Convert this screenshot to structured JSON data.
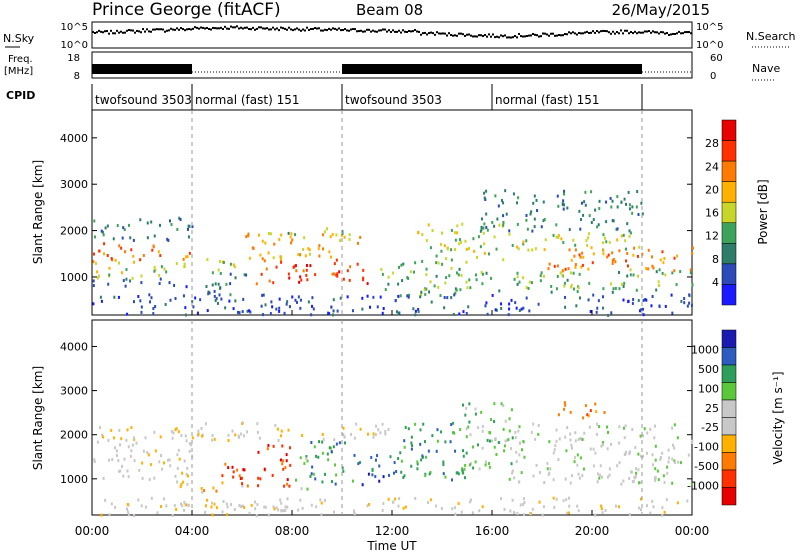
{
  "header": {
    "title": "Prince George (fitACF)",
    "beam": "Beam 08",
    "date": "26/May/2015"
  },
  "strip_labels": {
    "nsky": "N.Sky",
    "nsky_ticks": [
      "10^5",
      "10^0"
    ],
    "nsearch": "N.Search",
    "nsearch_ticks": [
      "10^5",
      "10^0"
    ],
    "freq_line1": "Freq.",
    "freq_line2": "[MHz]",
    "freq_ticks": [
      "18",
      "8"
    ],
    "nave": "Nave",
    "nave_ticks": [
      "60",
      "0"
    ],
    "cpid": "CPID"
  },
  "cpid_segments": [
    {
      "label": "twofsound 3503",
      "start_h": 0,
      "end_h": 4
    },
    {
      "label": "normal (fast) 151",
      "start_h": 4,
      "end_h": 10
    },
    {
      "label": "twofsound 3503",
      "start_h": 10,
      "end_h": 16
    },
    {
      "label": "normal (fast) 151",
      "start_h": 16,
      "end_h": 22
    }
  ],
  "colors": {
    "power": [
      "#1a1aff",
      "#2c4bb8",
      "#2e7d6a",
      "#3ea35a",
      "#c8d62a",
      "#ffb000",
      "#ff7a00",
      "#ff3000",
      "#e60000"
    ],
    "velocity": [
      "#e60000",
      "#ff3000",
      "#ff7a00",
      "#ffb000",
      "#c8c8c8",
      "#c8c8c8",
      "#5ac83a",
      "#2e9e5a",
      "#2c5cbe",
      "#1a1ab0"
    ]
  },
  "chart_data": [
    {
      "type": "heatmap",
      "name": "power",
      "xlabel": "",
      "ylabel": "Slant Range [km]",
      "xlim": [
        0,
        24
      ],
      "ylim": [
        180,
        4600
      ],
      "x_ticks": [
        "00:00",
        "04:00",
        "08:00",
        "12:00",
        "16:00",
        "20:00",
        "00:00"
      ],
      "y_ticks": [
        1000,
        2000,
        3000,
        4000
      ],
      "colorbar_label": "Power [dB]",
      "colorbar_ticks": [
        "4",
        "8",
        "12",
        "16",
        "20",
        "24",
        "28"
      ],
      "regions": [
        {
          "t0": 0.0,
          "t1": 4.0,
          "r0": 1800,
          "r1": 2300,
          "level": 2
        },
        {
          "t0": 0.0,
          "t1": 4.0,
          "r0": 1350,
          "r1": 1750,
          "level": 6
        },
        {
          "t0": 0.0,
          "t1": 4.0,
          "r0": 1000,
          "r1": 1350,
          "level": 4
        },
        {
          "t0": 0.0,
          "t1": 4.0,
          "r0": 800,
          "r1": 1000,
          "level": 1
        },
        {
          "t0": 4.3,
          "t1": 6.2,
          "r0": 650,
          "r1": 1200,
          "level": 2
        },
        {
          "t0": 4.5,
          "t1": 6.0,
          "r0": 1100,
          "r1": 1500,
          "level": 4
        },
        {
          "t0": 6.0,
          "t1": 11.0,
          "r0": 1400,
          "r1": 2000,
          "level": 5
        },
        {
          "t0": 6.5,
          "t1": 11.0,
          "r0": 850,
          "r1": 1400,
          "level": 7
        },
        {
          "t0": 7.8,
          "t1": 10.0,
          "r0": 1900,
          "r1": 2100,
          "level": 3
        },
        {
          "t0": 11.5,
          "t1": 15.0,
          "r0": 600,
          "r1": 1400,
          "level": 3
        },
        {
          "t0": 13.0,
          "t1": 16.5,
          "r0": 1400,
          "r1": 2200,
          "level": 4
        },
        {
          "t0": 15.5,
          "t1": 22.0,
          "r0": 2000,
          "r1": 2900,
          "level": 2
        },
        {
          "t0": 16.0,
          "t1": 22.0,
          "r0": 1600,
          "r1": 2000,
          "level": 4
        },
        {
          "t0": 14.5,
          "t1": 24.0,
          "r0": 700,
          "r1": 1200,
          "level": 3
        },
        {
          "t0": 18.0,
          "t1": 24.0,
          "r0": 1150,
          "r1": 1700,
          "level": 6
        },
        {
          "t0": 0.0,
          "t1": 24.0,
          "r0": 200,
          "r1": 650,
          "level": 1
        }
      ]
    },
    {
      "type": "heatmap",
      "name": "velocity",
      "xlabel": "Time UT",
      "ylabel": "Slant Range [km]",
      "xlim": [
        0,
        24
      ],
      "ylim": [
        180,
        4600
      ],
      "x_ticks": [
        "00:00",
        "04:00",
        "08:00",
        "12:00",
        "16:00",
        "20:00",
        "00:00"
      ],
      "y_ticks": [
        1000,
        2000,
        3000,
        4000
      ],
      "colorbar_label": "Velocity [m s⁻¹]",
      "colorbar_ticks": [
        "1000",
        "500",
        "100",
        "25",
        "-25",
        "-100",
        "-500",
        "-1000"
      ],
      "regions": [
        {
          "t0": 0.0,
          "t1": 4.0,
          "r0": 1000,
          "r1": 2200,
          "level": 4
        },
        {
          "t0": 2.5,
          "t1": 4.0,
          "r0": 850,
          "r1": 1100,
          "level": 4
        },
        {
          "t0": 4.3,
          "t1": 6.2,
          "r0": 700,
          "r1": 950,
          "level": 3
        },
        {
          "t0": 5.0,
          "t1": 6.3,
          "r0": 900,
          "r1": 1500,
          "level": 1
        },
        {
          "t0": 6.5,
          "t1": 8.0,
          "r0": 850,
          "r1": 1800,
          "level": 1
        },
        {
          "t0": 8.0,
          "t1": 8.6,
          "r0": 800,
          "r1": 1600,
          "level": 6
        },
        {
          "t0": 8.6,
          "t1": 10.5,
          "r0": 900,
          "r1": 1900,
          "level": 7
        },
        {
          "t0": 10.6,
          "t1": 12.2,
          "r0": 900,
          "r1": 1600,
          "level": 8
        },
        {
          "t0": 12.2,
          "t1": 15.0,
          "r0": 1000,
          "r1": 2300,
          "level": 7
        },
        {
          "t0": 14.8,
          "t1": 16.8,
          "r0": 1200,
          "r1": 2800,
          "level": 6
        },
        {
          "t0": 4.0,
          "t1": 12.0,
          "r0": 1900,
          "r1": 2300,
          "level": 4
        },
        {
          "t0": 16.5,
          "t1": 24.0,
          "r0": 900,
          "r1": 2300,
          "level": 5
        },
        {
          "t0": 18.5,
          "t1": 20.5,
          "r0": 2400,
          "r1": 2800,
          "level": 2
        },
        {
          "t0": 0.0,
          "t1": 24.0,
          "r0": 200,
          "r1": 600,
          "level": 4
        }
      ]
    },
    {
      "type": "scatter",
      "name": "nsky",
      "series": [
        {
          "values_log10": [
            3.2,
            3.4,
            3.6,
            3.8,
            4.0,
            4.1,
            4.0,
            3.9,
            3.8,
            3.7,
            3.6,
            3.5,
            3.4,
            3.0,
            2.8,
            2.6,
            2.5,
            2.6,
            2.8,
            3.0,
            3.2,
            3.3,
            3.2,
            3.0
          ]
        }
      ]
    },
    {
      "type": "bar",
      "name": "freq",
      "series": [
        {
          "name": "twofsound",
          "intervals_h": [
            [
              0,
              4
            ],
            [
              10,
              22
            ]
          ]
        }
      ]
    }
  ]
}
